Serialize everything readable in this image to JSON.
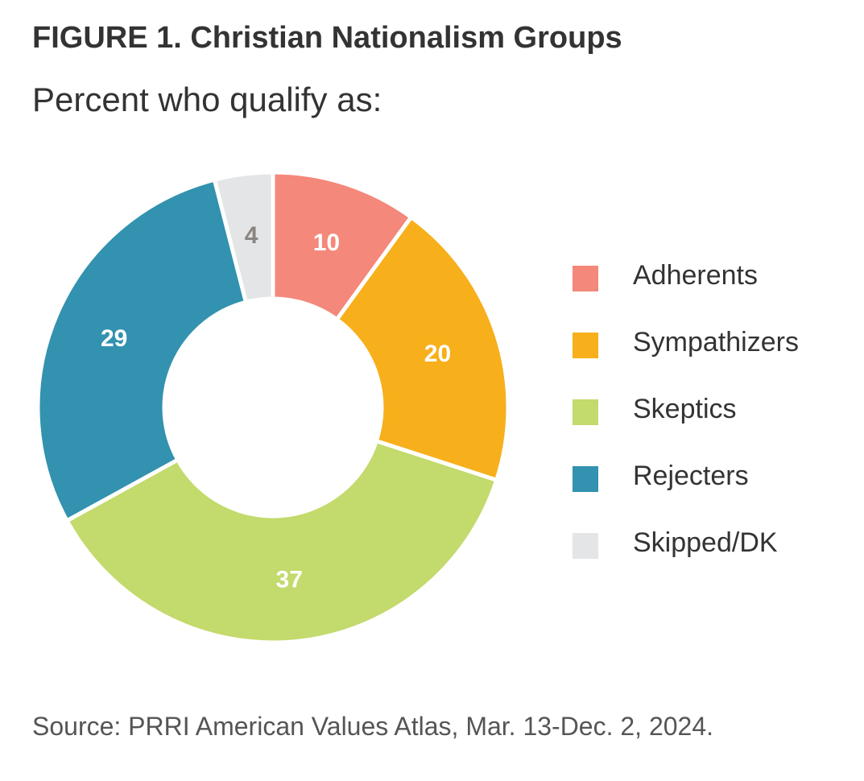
{
  "chart_data": {
    "type": "pie",
    "variant": "donut",
    "title": "FIGURE 1.  Christian Nationalism Groups",
    "subtitle": "Percent who qualify as:",
    "source": "Source: PRRI American Values Atlas, Mar. 13-Dec. 2, 2024.",
    "categories": [
      "Adherents",
      "Sympathizers",
      "Skeptics",
      "Rejecters",
      "Skipped/DK"
    ],
    "values": [
      10,
      20,
      37,
      29,
      4
    ],
    "colors": [
      "#F4887A",
      "#F7AF1B",
      "#C3DA6C",
      "#3292AF",
      "#E4E5E6"
    ],
    "label_colors": [
      "#ffffff",
      "#ffffff",
      "#ffffff",
      "#ffffff",
      "#8a8580"
    ],
    "legend_position": "right"
  }
}
